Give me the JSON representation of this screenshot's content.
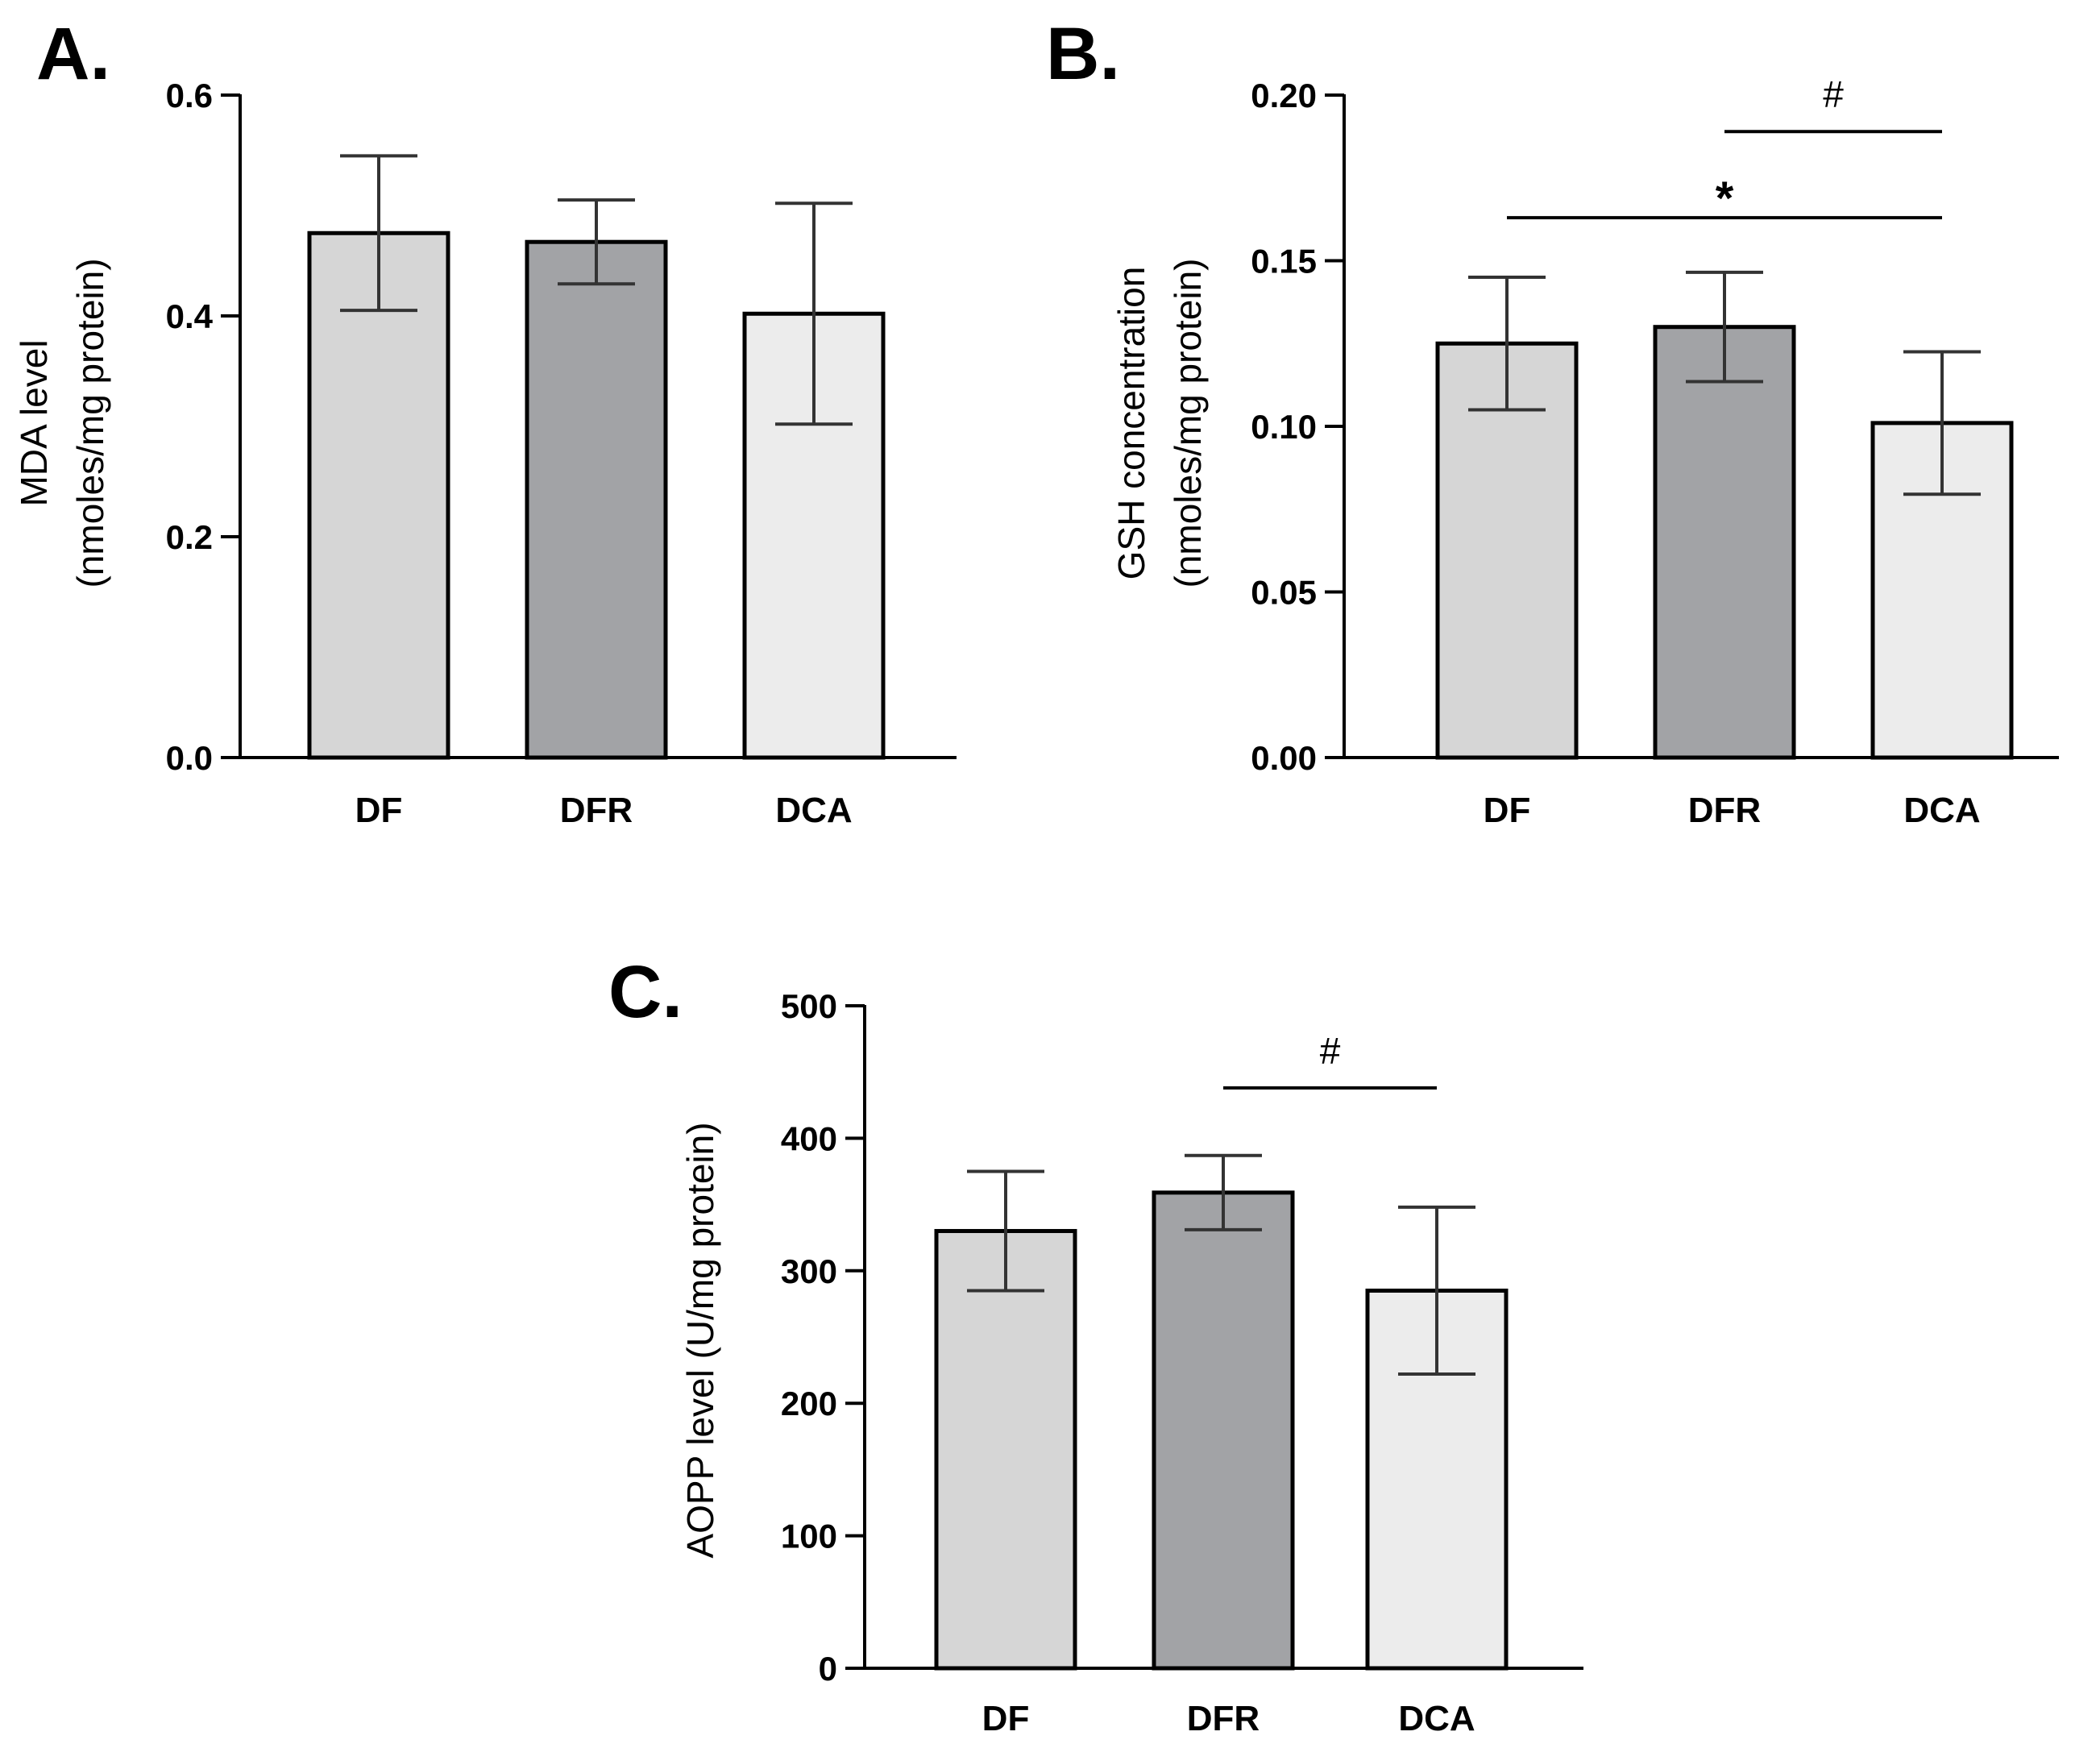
{
  "chart_data": [
    {
      "id": "A",
      "panel_label": "A.",
      "type": "bar",
      "categories": [
        "DF",
        "DFR",
        "DCA"
      ],
      "values": [
        0.475,
        0.467,
        0.402
      ],
      "errors": [
        0.07,
        0.038,
        0.1
      ],
      "colors": [
        "#d6d6d6",
        "#a2a3a6",
        "#ececec"
      ],
      "ylabel_lines": [
        "MDA level",
        "(nmoles/mg protein)"
      ],
      "ylim": [
        0,
        0.6
      ],
      "yticks": [
        0.0,
        0.2,
        0.4,
        0.6
      ],
      "ytick_labels": [
        "0.0",
        "0.2",
        "0.4",
        "0.6"
      ],
      "annotations": []
    },
    {
      "id": "B",
      "panel_label": "B.",
      "type": "bar",
      "categories": [
        "DF",
        "DFR",
        "DCA"
      ],
      "values": [
        0.125,
        0.13,
        0.101
      ],
      "errors": [
        0.02,
        0.0165,
        0.0215
      ],
      "colors": [
        "#d6d6d6",
        "#a2a3a6",
        "#ececec"
      ],
      "ylabel_lines": [
        "GSH concentration",
        "(nmoles/mg protein)"
      ],
      "ylim": [
        0,
        0.2
      ],
      "yticks": [
        0.0,
        0.05,
        0.1,
        0.15,
        0.2
      ],
      "ytick_labels": [
        "0.00",
        "0.05",
        "0.10",
        "0.15",
        "0.20"
      ],
      "annotations": [
        {
          "from": "DF",
          "to": "DCA",
          "y": 0.163,
          "symbol": "*"
        },
        {
          "from": "DFR",
          "to": "DCA",
          "y": 0.189,
          "symbol": "#"
        }
      ]
    },
    {
      "id": "C",
      "panel_label": "C.",
      "type": "bar",
      "categories": [
        "DF",
        "DFR",
        "DCA"
      ],
      "values": [
        330,
        359,
        285
      ],
      "errors": [
        45,
        28,
        63
      ],
      "colors": [
        "#d6d6d6",
        "#a2a3a6",
        "#ececec"
      ],
      "ylabel_lines": [
        "AOPP level (U/mg protein)"
      ],
      "ylim": [
        0,
        500
      ],
      "yticks": [
        0,
        100,
        200,
        300,
        400,
        500
      ],
      "ytick_labels": [
        "0",
        "100",
        "200",
        "300",
        "400",
        "500"
      ],
      "annotations": [
        {
          "from": "DFR",
          "to": "DCA",
          "y": 438,
          "symbol": "#"
        }
      ]
    }
  ]
}
